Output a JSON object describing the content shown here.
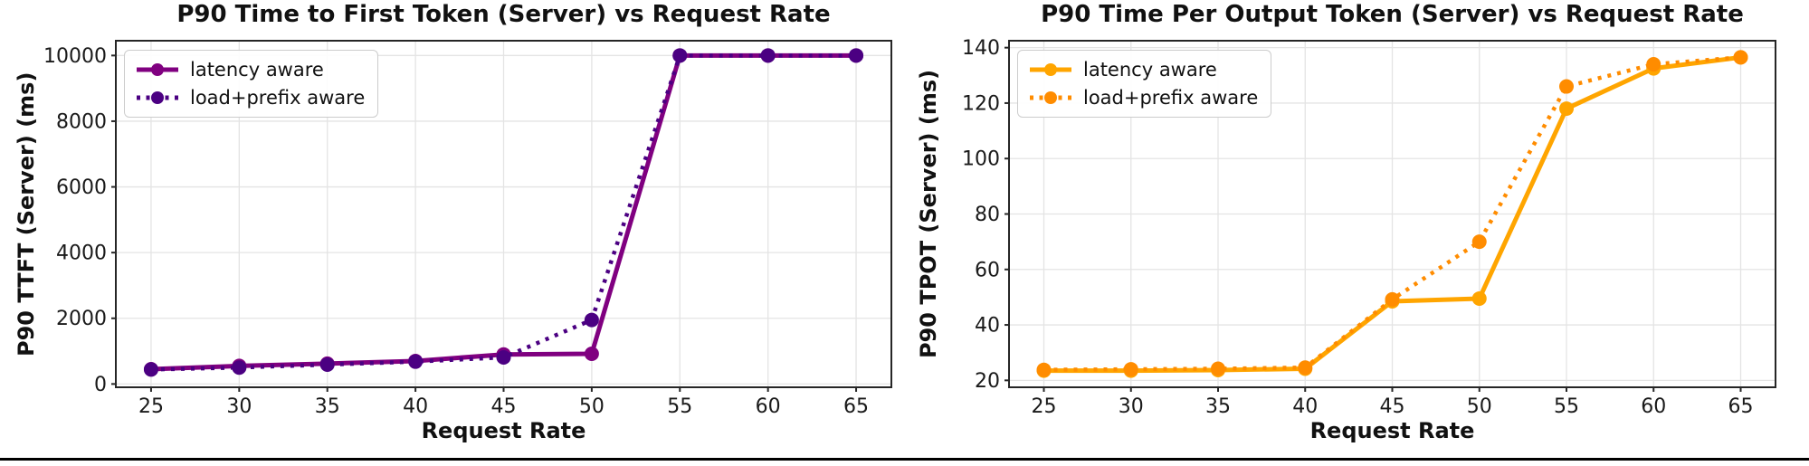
{
  "page": {
    "background": "#ffffff",
    "bottom_rule_color": "#000000"
  },
  "chart_data": [
    {
      "type": "line",
      "title": "P90 Time to First Token (Server) vs Request Rate",
      "xlabel": "Request Rate",
      "ylabel": "P90 TTFT (Server) (ms)",
      "x": [
        25,
        30,
        35,
        40,
        45,
        50,
        55,
        60,
        65
      ],
      "xticks": [
        25,
        30,
        35,
        40,
        45,
        50,
        55,
        60,
        65
      ],
      "yticks": [
        0,
        2000,
        4000,
        6000,
        8000,
        10000
      ],
      "xlim": [
        23,
        67
      ],
      "ylim": [
        -100,
        10450
      ],
      "grid": true,
      "legend_position": "upper-left",
      "series": [
        {
          "name": "latency aware",
          "color": "#800080",
          "style": "solid",
          "values": [
            450,
            550,
            620,
            700,
            900,
            920,
            10000,
            10000,
            10000
          ]
        },
        {
          "name": "load+prefix aware",
          "color": "#4B0082",
          "style": "dotted",
          "values": [
            440,
            500,
            590,
            680,
            810,
            1950,
            10000,
            10000,
            10000
          ]
        }
      ]
    },
    {
      "type": "line",
      "title": "P90 Time Per Output Token (Server) vs Request Rate",
      "xlabel": "Request Rate",
      "ylabel": "P90 TPOT (Server) (ms)",
      "x": [
        25,
        30,
        35,
        40,
        45,
        50,
        55,
        60,
        65
      ],
      "xticks": [
        25,
        30,
        35,
        40,
        45,
        50,
        55,
        60,
        65
      ],
      "yticks": [
        20,
        40,
        60,
        80,
        100,
        120,
        140
      ],
      "xlim": [
        23,
        67
      ],
      "ylim": [
        17.5,
        142.5
      ],
      "grid": true,
      "legend_position": "upper-left",
      "series": [
        {
          "name": "latency aware",
          "color": "#FFA500",
          "style": "solid",
          "values": [
            23.5,
            23.5,
            23.7,
            24.2,
            48.5,
            49.5,
            118,
            132.5,
            136.5
          ]
        },
        {
          "name": "load+prefix aware",
          "color": "#FF8C00",
          "style": "dotted",
          "values": [
            23.8,
            24.0,
            24.2,
            24.6,
            49.2,
            70,
            126,
            134,
            136.5
          ]
        }
      ]
    }
  ],
  "style": {
    "spine_color": "#262626",
    "grid_color": "#e4e4e4",
    "tick_color": "#262626"
  }
}
